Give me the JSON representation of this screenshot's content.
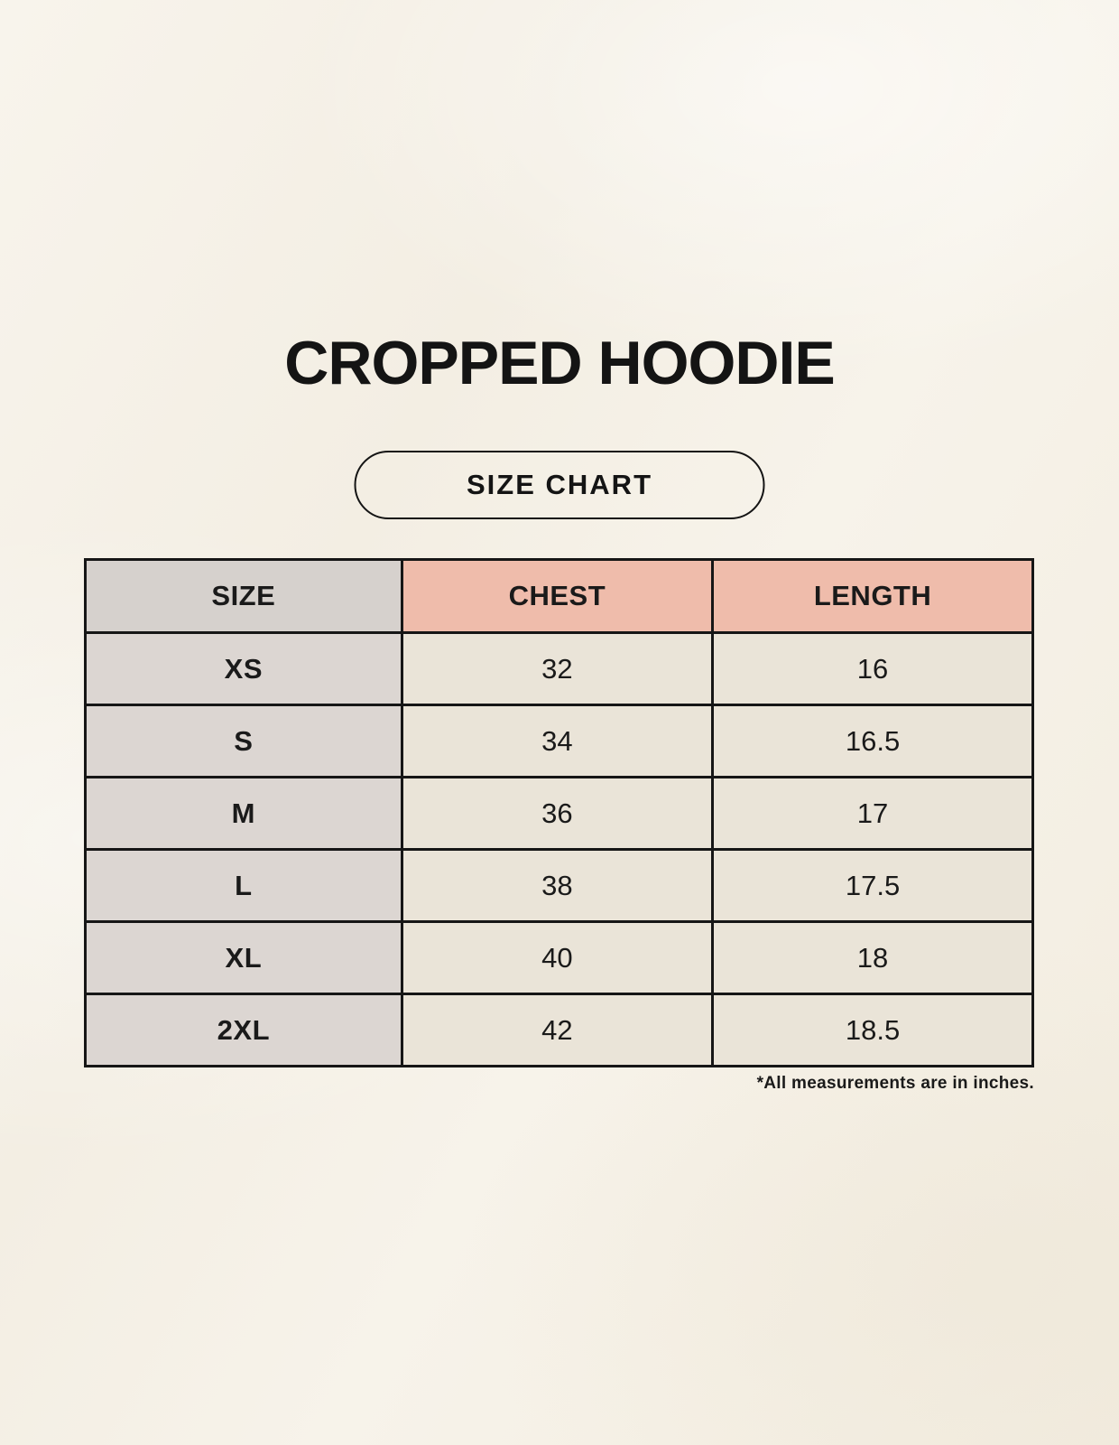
{
  "header": {
    "title": "CROPPED HOODIE",
    "badge": "SIZE CHART"
  },
  "chart_data": {
    "type": "table",
    "title": "CROPPED HOODIE",
    "subtitle": "SIZE CHART",
    "columns": [
      "SIZE",
      "CHEST",
      "LENGTH"
    ],
    "rows": [
      {
        "size": "XS",
        "chest": "32",
        "length": "16"
      },
      {
        "size": "S",
        "chest": "34",
        "length": "16.5"
      },
      {
        "size": "M",
        "chest": "36",
        "length": "17"
      },
      {
        "size": "L",
        "chest": "38",
        "length": "17.5"
      },
      {
        "size": "XL",
        "chest": "40",
        "length": "18"
      },
      {
        "size": "2XL",
        "chest": "42",
        "length": "18.5"
      }
    ],
    "units": "inches"
  },
  "footnote": "*All measurements are in inches.",
  "colors": {
    "background": "#f5f1e8",
    "header_size_bg": "#d6d1cd",
    "header_measure_bg": "#efbcab",
    "size_column_bg": "#dcd6d2",
    "data_cell_bg": "#eae4d8",
    "border": "#161616",
    "text": "#1a1a1a"
  }
}
